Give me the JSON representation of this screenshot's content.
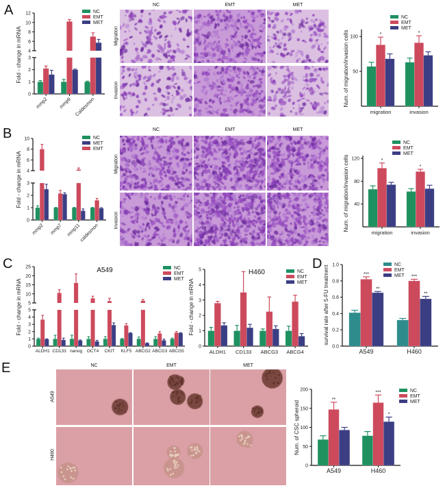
{
  "panels": {
    "A": "A",
    "B": "B",
    "C": "C",
    "D": "D",
    "E": "E"
  },
  "panel_A_images": {
    "columns": [
      "NC",
      "EMT",
      "MET"
    ],
    "rows": [
      "Migration",
      "Invasion"
    ]
  },
  "panel_B_images": {
    "columns": [
      "NC",
      "EMT",
      "MET"
    ],
    "rows": [
      "Migration",
      "Invasion"
    ]
  },
  "panel_E_images": {
    "columns": [
      "NC",
      "EMT",
      "MET"
    ],
    "rows": [
      "A549",
      "H460"
    ]
  },
  "colors": {
    "NC": "#1f9160",
    "NC_D": "#2f8c8c",
    "EMT": "#cd4a5d",
    "MET": "#3c3e84"
  },
  "chart_data": [
    {
      "id": "A-left",
      "type": "bar",
      "title": "",
      "ylabel": "Fold - change  in  mRNA",
      "xlabel": "",
      "categories": [
        "mmp2",
        "mmp9",
        "Caldesmon"
      ],
      "rotate_labels": true,
      "ylim": [
        0,
        12
      ],
      "axis_break": [
        3,
        4
      ],
      "yticks_lower": [
        0,
        1,
        2,
        3
      ],
      "yticks_upper": [
        4,
        6,
        8,
        10,
        12
      ],
      "legend": [
        "NC",
        "EMT",
        "MET"
      ],
      "legend_placement": "top-right",
      "series": [
        {
          "name": "NC",
          "color": "#1f9160",
          "values": [
            1,
            1,
            1
          ],
          "errors": [
            0.1,
            0.2,
            0.05
          ]
        },
        {
          "name": "EMT",
          "color": "#cd4a5d",
          "values": [
            2.1,
            10.2,
            7.0
          ],
          "errors": [
            0.2,
            0.4,
            0.8
          ]
        },
        {
          "name": "MET",
          "color": "#3c3e84",
          "values": [
            1.6,
            2.0,
            5.7
          ],
          "errors": [
            0.35,
            0.05,
            0.7
          ]
        }
      ]
    },
    {
      "id": "A-right",
      "type": "bar",
      "title": "",
      "ylabel": "Num. of migration/invasion cells",
      "xlabel": "",
      "categories": [
        "migration",
        "invasion"
      ],
      "rotate_labels": false,
      "ylim": [
        0,
        110
      ],
      "yticks": [
        50,
        100
      ],
      "legend": [
        "NC",
        "EMT",
        "MET"
      ],
      "legend_placement": "top-right",
      "series": [
        {
          "name": "NC",
          "color": "#1f9160",
          "values": [
            57,
            63
          ],
          "errors": [
            6,
            6
          ],
          "sig": [
            "",
            ""
          ]
        },
        {
          "name": "EMT",
          "color": "#cd4a5d",
          "values": [
            88,
            91
          ],
          "errors": [
            11,
            10
          ],
          "sig": [
            "*",
            "*"
          ]
        },
        {
          "name": "MET",
          "color": "#3c3e84",
          "values": [
            68,
            73
          ],
          "errors": [
            7,
            5
          ],
          "sig": [
            "",
            ""
          ]
        }
      ]
    },
    {
      "id": "B-left",
      "type": "bar",
      "title": "",
      "ylabel": "Fold - change  in  mRNA",
      "xlabel": "",
      "categories": [
        "mmp2",
        "mmp7",
        "mmp11",
        "caldesmon"
      ],
      "rotate_labels": true,
      "ylim": [
        0,
        10
      ],
      "axis_break": [
        3,
        4
      ],
      "yticks_lower": [
        0,
        1,
        2,
        3
      ],
      "yticks_upper": [
        4,
        6,
        8,
        10
      ],
      "legend": [
        "NC",
        "MET",
        "EMT"
      ],
      "legend_placement": "top-right",
      "series": [
        {
          "name": "NC",
          "color": "#1f9160",
          "values": [
            1,
            1,
            1,
            1
          ],
          "errors": [
            0.15,
            0.02,
            0.02,
            0.02
          ]
        },
        {
          "name": "EMT",
          "color": "#cd4a5d",
          "values": [
            8.0,
            2.15,
            4.2,
            1.6
          ],
          "errors": [
            0.9,
            0.25,
            0.3,
            0.15
          ]
        },
        {
          "name": "MET",
          "color": "#3c3e84",
          "values": [
            2.5,
            2.1,
            0.75,
            0.95
          ],
          "errors": [
            0.4,
            0.1,
            0.15,
            0.05
          ]
        }
      ]
    },
    {
      "id": "B-right",
      "type": "bar",
      "title": "",
      "ylabel": "Num. of migration/invasion cells",
      "xlabel": "",
      "categories": [
        "migration",
        "invasion"
      ],
      "rotate_labels": false,
      "ylim": [
        0,
        125
      ],
      "yticks": [
        40,
        80,
        120
      ],
      "legend": [
        "NC",
        "EMT",
        "MET"
      ],
      "legend_placement": "top-right",
      "series": [
        {
          "name": "NC",
          "color": "#1f9160",
          "values": [
            66,
            62
          ],
          "errors": [
            6,
            5
          ],
          "sig": [
            "",
            ""
          ]
        },
        {
          "name": "EMT",
          "color": "#cd4a5d",
          "values": [
            103,
            97
          ],
          "errors": [
            9,
            4
          ],
          "sig": [
            "*",
            "*"
          ]
        },
        {
          "name": "MET",
          "color": "#3c3e84",
          "values": [
            74,
            67
          ],
          "errors": [
            4,
            6
          ],
          "sig": [
            "",
            ""
          ]
        }
      ]
    },
    {
      "id": "C-left",
      "type": "bar",
      "title": "A549",
      "ylabel": "Fold - change  in  mRNA",
      "xlabel": "",
      "categories": [
        "ALDH1",
        "CD133",
        "nanog",
        "OCT4",
        "CKIT",
        "KLF5",
        "ABCG2",
        "ABCG3",
        "ABCG5"
      ],
      "rotate_labels": false,
      "ylim": [
        0,
        25
      ],
      "axis_break": [
        5,
        5
      ],
      "yticks_lower": [
        0,
        1,
        2,
        3,
        4,
        5
      ],
      "yticks_upper": [
        5,
        10,
        15,
        20,
        25
      ],
      "legend": [
        "NC",
        "EMT",
        "MET"
      ],
      "legend_placement": "top-right",
      "series": [
        {
          "name": "NC",
          "color": "#1f9160",
          "values": [
            1,
            1,
            1,
            1,
            1,
            1,
            1,
            1,
            1
          ],
          "errors": [
            0.1,
            0.5,
            0.5,
            0.3,
            0.3,
            0.05,
            0.25,
            0.3,
            0.1
          ]
        },
        {
          "name": "EMT",
          "color": "#cd4a5d",
          "values": [
            3.65,
            10.5,
            16,
            7.5,
            6,
            2.85,
            6.2,
            1.75,
            1.85
          ],
          "errors": [
            0.6,
            1.8,
            5,
            1.2,
            1.6,
            0.25,
            0.7,
            0.25,
            0.15
          ]
        },
        {
          "name": "MET",
          "color": "#3c3e84",
          "values": [
            0.95,
            0.85,
            0.78,
            0.65,
            2.9,
            1.8,
            0.4,
            0.8,
            1.8
          ],
          "errors": [
            0.05,
            0.25,
            0.08,
            0.15,
            0.3,
            0.05,
            0.05,
            0.15,
            0.05
          ]
        }
      ]
    },
    {
      "id": "C-right",
      "type": "bar",
      "title": "H460",
      "ylabel": "Fold - change  in  mRNA",
      "xlabel": "",
      "categories": [
        "ALDH1",
        "CD133",
        "ABCG3",
        "ABCG4"
      ],
      "rotate_labels": false,
      "ylim": [
        0,
        5
      ],
      "yticks": [
        0,
        1,
        2,
        3,
        4,
        5
      ],
      "legend": [
        "NC",
        "EMT",
        "MET"
      ],
      "legend_placement": "top-right",
      "series": [
        {
          "name": "NC",
          "color": "#1f9160",
          "values": [
            1,
            1,
            1,
            1
          ],
          "errors": [
            0.22,
            0.35,
            0.12,
            0.3
          ]
        },
        {
          "name": "EMT",
          "color": "#cd4a5d",
          "values": [
            2.8,
            3.5,
            2.25,
            2.9
          ],
          "errors": [
            0.12,
            1.35,
            0.95,
            0.42
          ]
        },
        {
          "name": "MET",
          "color": "#3c3e84",
          "values": [
            1.35,
            1.2,
            1.12,
            0.65
          ],
          "errors": [
            0.17,
            0.22,
            0.2,
            0.17
          ]
        }
      ]
    },
    {
      "id": "D",
      "type": "bar",
      "title": "",
      "ylabel": "survival rate after 5-FU treatment",
      "xlabel": "",
      "categories": [
        "A549",
        "H460"
      ],
      "rotate_labels": false,
      "ylim": [
        0,
        1.0
      ],
      "yticks": [
        0.0,
        0.2,
        0.4,
        0.6,
        0.8,
        1.0
      ],
      "tick_decimals": 1,
      "legend": [
        "NC",
        "EMT",
        "MET"
      ],
      "legend_placement": "top-right",
      "series": [
        {
          "name": "NC",
          "color": "#2f8c8c",
          "values": [
            0.41,
            0.32
          ],
          "errors": [
            0.03,
            0.02
          ],
          "sig": [
            "",
            ""
          ]
        },
        {
          "name": "EMT",
          "color": "#cd4a5d",
          "values": [
            0.82,
            0.8
          ],
          "errors": [
            0.03,
            0.02
          ],
          "sig": [
            "***",
            "***"
          ]
        },
        {
          "name": "MET",
          "color": "#3c3e84",
          "values": [
            0.655,
            0.58
          ],
          "errors": [
            0.015,
            0.03
          ],
          "sig": [
            "**",
            "**"
          ]
        }
      ]
    },
    {
      "id": "E",
      "type": "bar",
      "title": "",
      "ylabel": "Num. of CSC spheroid",
      "xlabel": "",
      "categories": [
        "A549",
        "H460"
      ],
      "rotate_labels": false,
      "ylim": [
        0,
        200
      ],
      "yticks": [
        0,
        50,
        100,
        150,
        200
      ],
      "legend": [
        "NC",
        "EMT",
        "MET"
      ],
      "legend_placement": "top-right",
      "series": [
        {
          "name": "NC",
          "color": "#1f9160",
          "values": [
            68,
            78
          ],
          "errors": [
            10,
            11
          ],
          "sig": [
            "",
            ""
          ]
        },
        {
          "name": "EMT",
          "color": "#cd4a5d",
          "values": [
            147,
            165
          ],
          "errors": [
            19,
            20
          ],
          "sig": [
            "**",
            "***"
          ]
        },
        {
          "name": "MET",
          "color": "#3c3e84",
          "values": [
            93,
            115
          ],
          "errors": [
            7,
            12
          ],
          "sig": [
            "",
            "*"
          ]
        }
      ]
    }
  ]
}
